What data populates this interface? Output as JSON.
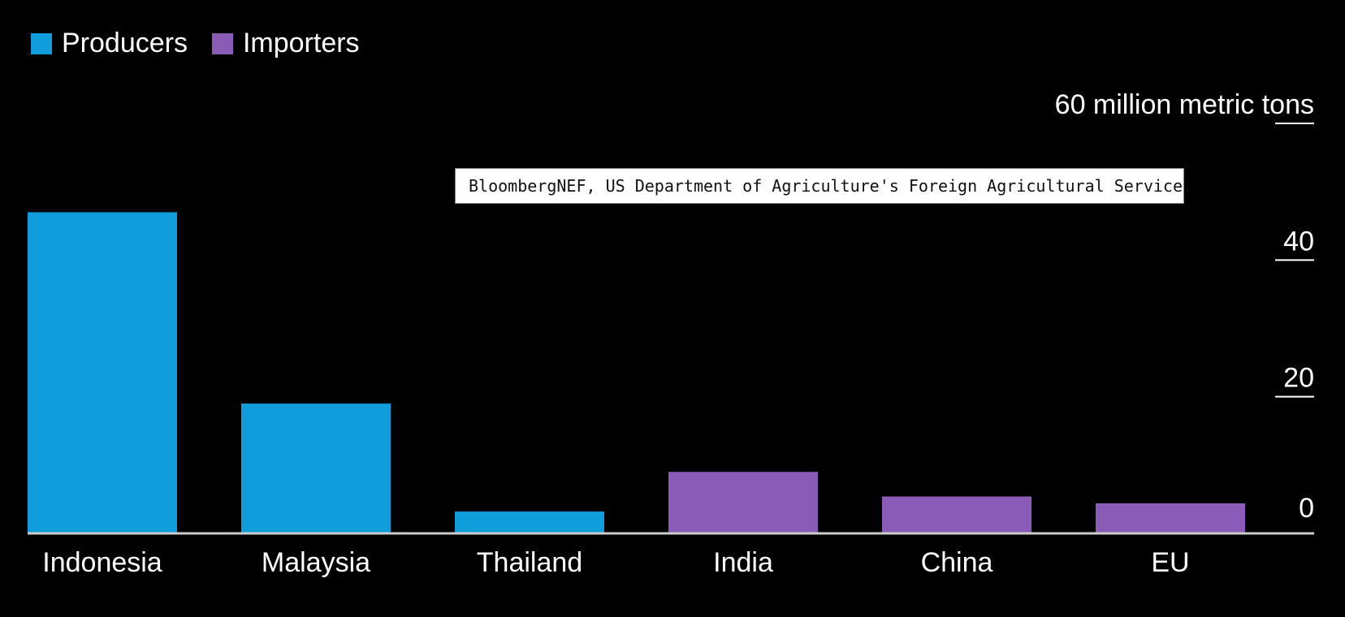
{
  "colors": {
    "producers": "#0f9ddb",
    "importers": "#8a5cb8",
    "background": "#000000",
    "axis": "#cccccc"
  },
  "legend": [
    {
      "label": "Producers",
      "color": "#0f9ddb"
    },
    {
      "label": "Importers",
      "color": "#8a5cb8"
    }
  ],
  "tooltip": {
    "text": "BloombergNEF, US Department of Agriculture's Foreign Agricultural Service."
  },
  "chart_data": {
    "type": "bar",
    "categories": [
      "Indonesia",
      "Malaysia",
      "Thailand",
      "India",
      "China",
      "EU"
    ],
    "values": [
      47,
      19,
      3.2,
      9,
      5.4,
      4.4
    ],
    "groups": [
      "Producers",
      "Producers",
      "Producers",
      "Importers",
      "Importers",
      "Importers"
    ],
    "ylabel": "million metric tons",
    "ylim": [
      0,
      60
    ],
    "yticks": [
      {
        "value": 0,
        "label": "0"
      },
      {
        "value": 20,
        "label": "20"
      },
      {
        "value": 40,
        "label": "40"
      },
      {
        "value": 60,
        "label": "60 million metric tons"
      }
    ],
    "grid": false,
    "legend_position": "top-left"
  }
}
